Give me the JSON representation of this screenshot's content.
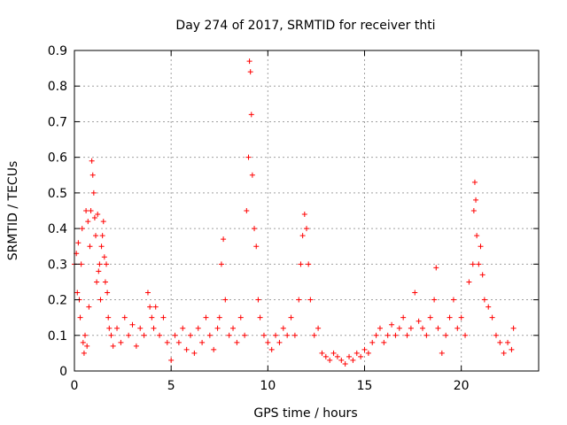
{
  "chart_data": {
    "type": "scatter",
    "title": "Day 274 of 2017, SRMTID for receiver thti",
    "xlabel": "GPS time / hours",
    "ylabel": "SRMTID / TECUs",
    "xlim": [
      0,
      24
    ],
    "ylim": [
      0,
      0.9
    ],
    "xticks": [
      0,
      5,
      10,
      15,
      20
    ],
    "xtick_labels": [
      "0",
      "5",
      "10",
      "15",
      "20"
    ],
    "yticks": [
      0,
      0.1,
      0.2,
      0.3,
      0.4,
      0.5,
      0.6,
      0.7,
      0.8,
      0.9
    ],
    "ytick_labels": [
      "0",
      "0.1",
      "0.2",
      "0.3",
      "0.4",
      "0.5",
      "0.6",
      "0.7",
      "0.8",
      "0.9"
    ],
    "grid": true,
    "marker": "plus",
    "color": "#ff0000",
    "series": [
      {
        "name": "SRMTID",
        "x": [
          0.0,
          0.1,
          0.15,
          0.2,
          0.25,
          0.3,
          0.35,
          0.4,
          0.45,
          0.5,
          0.55,
          0.6,
          0.65,
          0.7,
          0.75,
          0.8,
          0.85,
          0.9,
          0.95,
          1.0,
          1.05,
          1.1,
          1.15,
          1.2,
          1.25,
          1.3,
          1.35,
          1.4,
          1.45,
          1.5,
          1.55,
          1.6,
          1.65,
          1.7,
          1.75,
          1.8,
          1.9,
          2.0,
          2.2,
          2.4,
          2.6,
          2.8,
          3.0,
          3.2,
          3.4,
          3.6,
          3.8,
          3.9,
          4.0,
          4.1,
          4.2,
          4.4,
          4.6,
          4.8,
          5.0,
          5.2,
          5.4,
          5.6,
          5.8,
          6.0,
          6.2,
          6.4,
          6.6,
          6.8,
          7.0,
          7.2,
          7.4,
          7.5,
          7.6,
          7.7,
          7.8,
          8.0,
          8.2,
          8.4,
          8.6,
          8.8,
          8.9,
          9.0,
          9.05,
          9.1,
          9.15,
          9.2,
          9.3,
          9.4,
          9.5,
          9.6,
          9.8,
          10.0,
          10.2,
          10.4,
          10.6,
          10.8,
          11.0,
          11.2,
          11.4,
          11.6,
          11.7,
          11.8,
          11.9,
          12.0,
          12.1,
          12.2,
          12.4,
          12.6,
          12.8,
          13.0,
          13.2,
          13.4,
          13.6,
          13.8,
          14.0,
          14.2,
          14.4,
          14.6,
          14.8,
          15.0,
          15.2,
          15.4,
          15.6,
          15.8,
          16.0,
          16.2,
          16.4,
          16.6,
          16.8,
          17.0,
          17.2,
          17.4,
          17.6,
          17.8,
          18.0,
          18.2,
          18.4,
          18.6,
          18.7,
          18.8,
          19.0,
          19.2,
          19.4,
          19.6,
          19.8,
          20.0,
          20.2,
          20.4,
          20.6,
          20.65,
          20.7,
          20.75,
          20.8,
          20.9,
          21.0,
          21.1,
          21.2,
          21.4,
          21.6,
          21.8,
          22.0,
          22.2,
          22.4,
          22.6,
          22.7
        ],
        "y": [
          0.3,
          0.33,
          0.22,
          0.36,
          0.2,
          0.15,
          0.3,
          0.4,
          0.08,
          0.05,
          0.1,
          0.45,
          0.07,
          0.42,
          0.18,
          0.35,
          0.45,
          0.59,
          0.55,
          0.5,
          0.43,
          0.38,
          0.25,
          0.44,
          0.28,
          0.3,
          0.2,
          0.35,
          0.38,
          0.42,
          0.32,
          0.25,
          0.3,
          0.22,
          0.15,
          0.12,
          0.1,
          0.07,
          0.12,
          0.08,
          0.15,
          0.1,
          0.13,
          0.07,
          0.12,
          0.1,
          0.22,
          0.18,
          0.15,
          0.12,
          0.18,
          0.1,
          0.15,
          0.08,
          0.03,
          0.1,
          0.08,
          0.12,
          0.06,
          0.1,
          0.05,
          0.12,
          0.08,
          0.15,
          0.1,
          0.06,
          0.12,
          0.15,
          0.3,
          0.37,
          0.2,
          0.1,
          0.12,
          0.08,
          0.15,
          0.1,
          0.45,
          0.6,
          0.87,
          0.84,
          0.72,
          0.55,
          0.4,
          0.35,
          0.2,
          0.15,
          0.1,
          0.08,
          0.06,
          0.1,
          0.08,
          0.12,
          0.1,
          0.15,
          0.1,
          0.2,
          0.3,
          0.38,
          0.44,
          0.4,
          0.3,
          0.2,
          0.1,
          0.12,
          0.05,
          0.04,
          0.03,
          0.05,
          0.04,
          0.03,
          0.02,
          0.04,
          0.03,
          0.05,
          0.04,
          0.06,
          0.05,
          0.08,
          0.1,
          0.12,
          0.08,
          0.1,
          0.13,
          0.1,
          0.12,
          0.15,
          0.1,
          0.12,
          0.22,
          0.14,
          0.12,
          0.1,
          0.15,
          0.2,
          0.29,
          0.12,
          0.05,
          0.1,
          0.15,
          0.2,
          0.12,
          0.15,
          0.1,
          0.25,
          0.3,
          0.45,
          0.53,
          0.48,
          0.38,
          0.3,
          0.35,
          0.27,
          0.2,
          0.18,
          0.15,
          0.1,
          0.08,
          0.05,
          0.08,
          0.06,
          0.12
        ]
      }
    ]
  }
}
